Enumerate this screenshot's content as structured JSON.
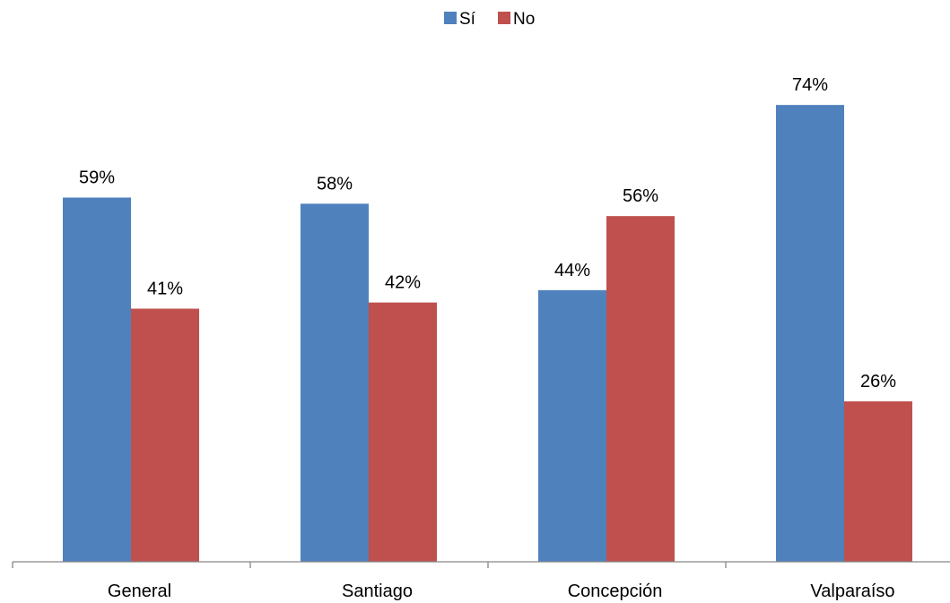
{
  "chart_data": {
    "type": "bar",
    "title": "",
    "xlabel": "",
    "ylabel": "",
    "categories": [
      "General",
      "Santiago",
      "Concepción",
      "Valparaíso"
    ],
    "series": [
      {
        "name": "Sí",
        "color": "#4F81BD",
        "values": [
          59,
          58,
          44,
          74
        ],
        "labels": [
          "59%",
          "58%",
          "44%",
          "74%"
        ]
      },
      {
        "name": "No",
        "color": "#C0504D",
        "values": [
          41,
          42,
          56,
          26
        ],
        "labels": [
          "41%",
          "42%",
          "56%",
          "26%"
        ]
      }
    ],
    "value_unit": "%",
    "ylim": [
      0,
      80
    ],
    "grid": false,
    "legend_position": "top"
  }
}
